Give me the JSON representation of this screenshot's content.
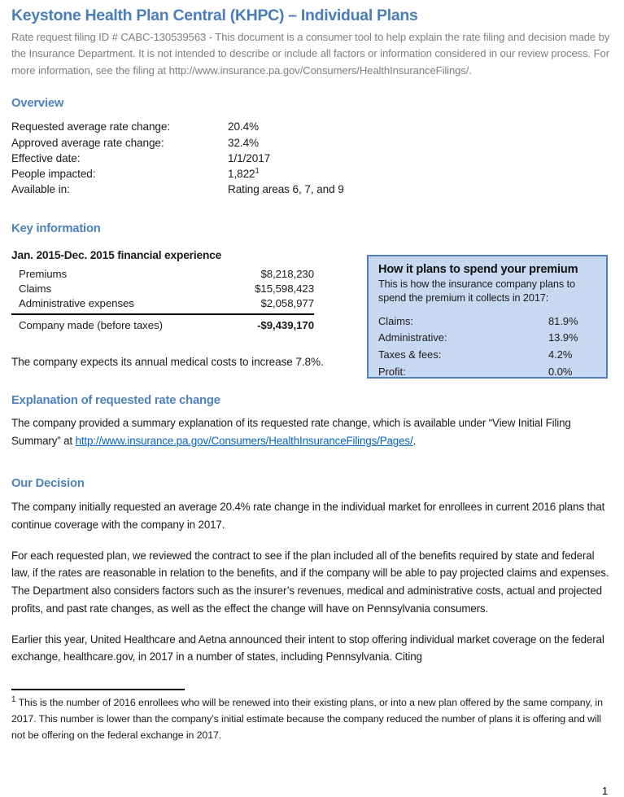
{
  "page": {
    "title": "Keystone Health Plan Central (KHPC) – Individual Plans",
    "intro": "Rate request filing ID # CABC-130539563 - This document is a consumer tool to help explain the rate filing and decision made by the Insurance Department. It is not intended to describe or include all factors or information considered in our review process. For more information, see the filing at http://www.insurance.pa.gov/Consumers/HealthInsuranceFilings/.",
    "page_number": "1"
  },
  "overview": {
    "heading": "Overview",
    "rows": [
      {
        "label": "Requested average rate change:",
        "value": "20.4%"
      },
      {
        "label": "Approved average rate change:",
        "value": "32.4%"
      },
      {
        "label": "Effective date:",
        "value": "1/1/2017"
      },
      {
        "label": "People impacted:",
        "value": "1,822",
        "sup": "1"
      },
      {
        "label": "Available in:",
        "value": "Rating areas 6, 7, and 9"
      }
    ]
  },
  "key_information": {
    "heading": "Key information",
    "financial": {
      "title": "Jan. 2015-Dec. 2015 financial experience",
      "rows": [
        {
          "label": "Premiums",
          "value": "$8,218,230"
        },
        {
          "label": "Claims",
          "value": "$15,598,423"
        },
        {
          "label": "Administrative expenses",
          "value": "$2,058,977"
        }
      ],
      "total": {
        "label": "Company made (before taxes)",
        "value": "-$9,439,170"
      }
    },
    "note": "The company expects its annual medical costs to increase 7.8%.",
    "premium_box": {
      "title": "How it plans to spend your premium",
      "subtitle": "This is how the insurance company plans to spend the premium it collects in 2017:",
      "rows": [
        {
          "label": "Claims:",
          "value": "81.9%"
        },
        {
          "label": "Administrative:",
          "value": "13.9%"
        },
        {
          "label": "Taxes & fees:",
          "value": "4.2%"
        },
        {
          "label": "Profit:",
          "value": "0.0%"
        }
      ]
    }
  },
  "explanation": {
    "heading": "Explanation of requested rate change",
    "text_before_link": "The company provided a summary explanation of its requested rate change, which is available under “View Initial Filing Summary” at ",
    "link": "http://www.insurance.pa.gov/Consumers/HealthInsuranceFilings/Pages/",
    "text_after_link": "."
  },
  "decision": {
    "heading": "Our Decision",
    "paragraphs": [
      "The company initially requested an average 20.4% rate change in the individual market for enrollees in current 2016 plans that continue coverage with the company in 2017.",
      "For each requested plan, we reviewed the contract to see if the plan included all of the benefits required by state and federal law, if the rates are reasonable in relation to the benefits, and if the company will be able to pay projected claims and expenses. The Department also considers factors such as the insurer’s revenues, medical and administrative costs, actual and projected profits, and past rate changes, as well as the effect the change will have on Pennsylvania consumers.",
      "Earlier this year, United Healthcare and Aetna announced their intent to stop offering individual market coverage on the federal exchange, healthcare.gov, in 2017 in a number of states, including Pennsylvania. Citing"
    ]
  },
  "footnote": {
    "marker": "1",
    "text": " This is the number of 2016 enrollees who will be renewed into their existing plans, or into a new plan offered by the same company, in 2017. This number is lower than the company’s initial estimate because the company reduced the number of plans it is offering and will not be offering on the federal exchange in 2017."
  },
  "colors": {
    "title_blue": "#4a7ebb",
    "heading_blue": "#4f81bd",
    "link_blue": "#0563c1",
    "intro_gray": "#7f7f7f",
    "box_background": "#c6d9f0",
    "box_border": "#4f81bd"
  }
}
